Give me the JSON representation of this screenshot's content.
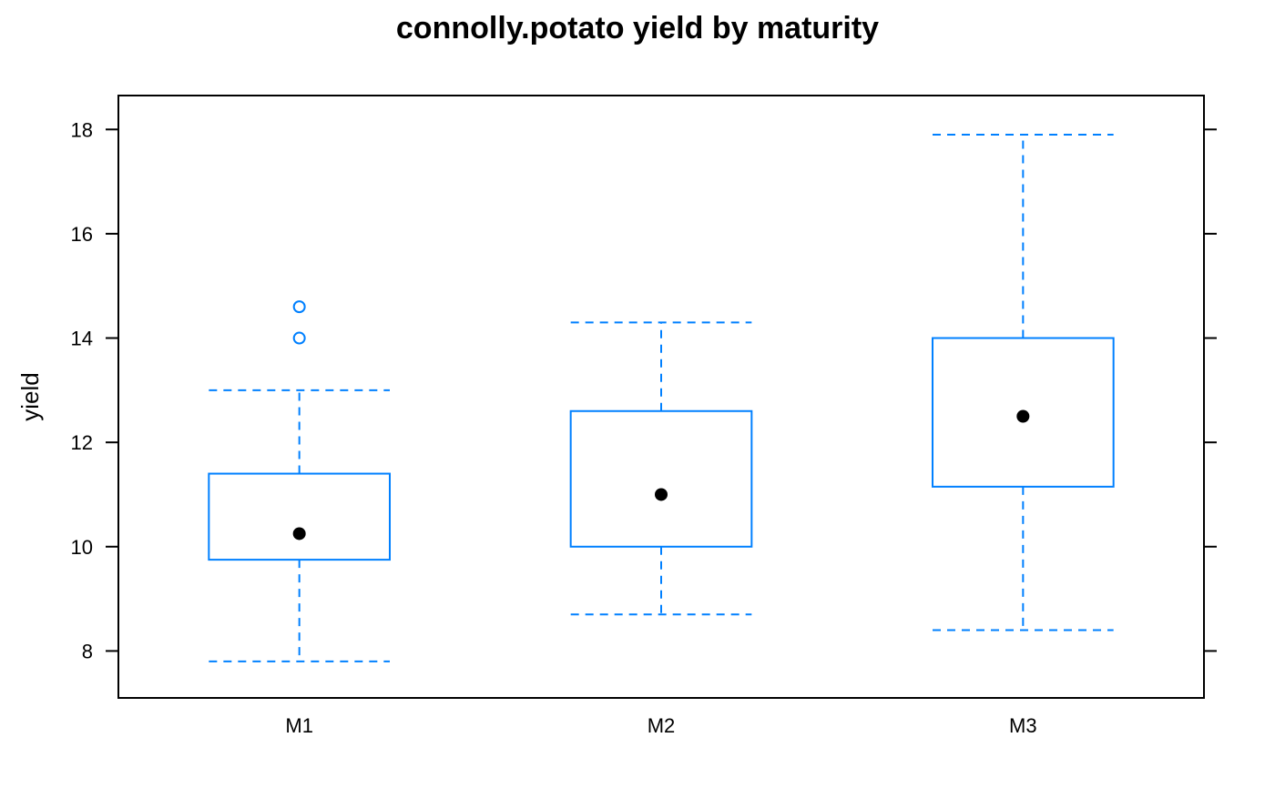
{
  "chart_data": {
    "type": "box",
    "title": "connolly.potato yield by maturity",
    "xlabel": "",
    "ylabel": "yield",
    "ylim": [
      7.1,
      18.65
    ],
    "yticks": [
      8,
      10,
      12,
      14,
      16,
      18
    ],
    "categories": [
      "M1",
      "M2",
      "M3"
    ],
    "boxes": [
      {
        "category": "M1",
        "whisker_low": 7.8,
        "q1": 9.75,
        "median": 10.25,
        "q3": 11.4,
        "whisker_high": 13.0,
        "outliers": [
          14.0,
          14.6
        ]
      },
      {
        "category": "M2",
        "whisker_low": 8.7,
        "q1": 10.0,
        "median": 11.0,
        "q3": 12.6,
        "whisker_high": 14.3,
        "outliers": []
      },
      {
        "category": "M3",
        "whisker_low": 8.4,
        "q1": 11.15,
        "median": 12.5,
        "q3": 14.0,
        "whisker_high": 17.9,
        "outliers": []
      }
    ],
    "colors": {
      "box": "#0080ff",
      "median_dot": "#000000",
      "axis": "#000000"
    },
    "grid": false
  }
}
